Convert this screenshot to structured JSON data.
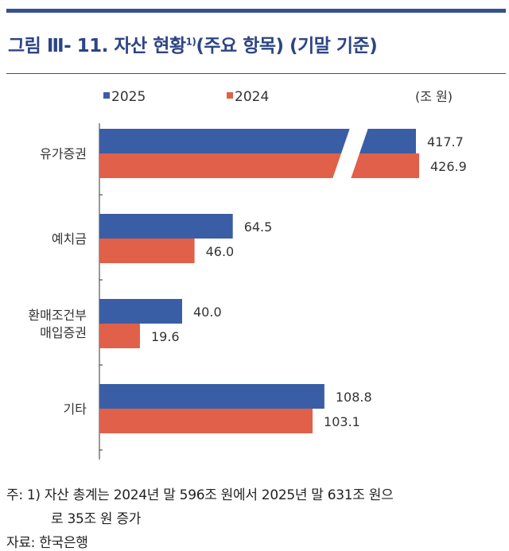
{
  "title": {
    "main": "그림 Ⅲ- 11. 자산 현황",
    "footnote_mark": "1)",
    "suffix": "(주요 항목) (기말 기준)"
  },
  "colors": {
    "2025": "#3a5ea6",
    "2024": "#e0604a",
    "title": "#2d4585"
  },
  "chart_data": {
    "type": "bar",
    "orientation": "horizontal",
    "unit": "(조 원)",
    "categories": [
      "유가증권",
      "예치금",
      "환매조건부\n매입증권",
      "기타"
    ],
    "category_lines": [
      [
        "유가증권"
      ],
      [
        "예치금"
      ],
      [
        "환매조건부",
        "매입증권"
      ],
      [
        "기타"
      ]
    ],
    "series": [
      {
        "name": "2025",
        "values": [
          417.7,
          64.5,
          40.0,
          108.8
        ],
        "labels": [
          "417.7",
          "64.5",
          "40.0",
          "108.8"
        ]
      },
      {
        "name": "2024",
        "values": [
          426.9,
          46.0,
          19.6,
          103.1
        ],
        "labels": [
          "426.9",
          "46.0",
          "19.6",
          "103.1"
        ]
      }
    ],
    "axis_break": true,
    "legend_position": "top",
    "grid": false
  },
  "notes": {
    "line1": "주: 1) 자산 총계는 2024년 말 596조 원에서 2025년 말 631조 원으",
    "line2": "로 35조 원 증가",
    "source": "자료: 한국은행"
  }
}
